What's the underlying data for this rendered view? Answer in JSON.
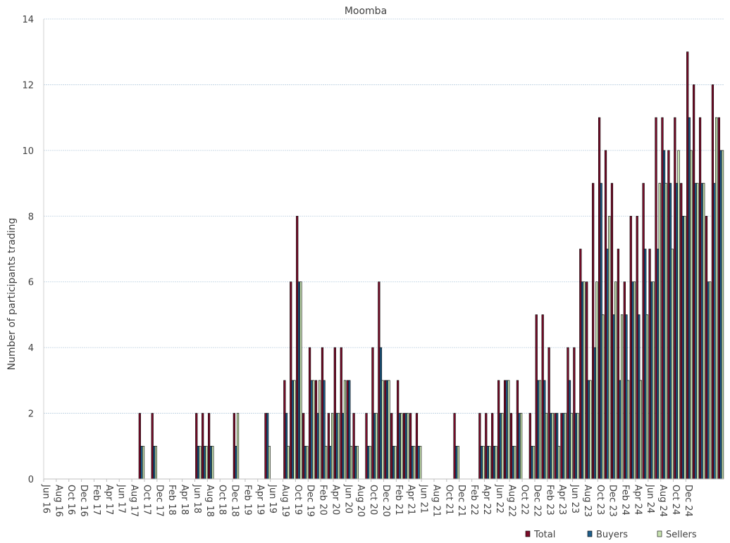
{
  "chart_data": {
    "type": "bar",
    "title": "Moomba",
    "ylabel": "Number of participants trading",
    "xlabel": "",
    "ylim": [
      0,
      14
    ],
    "yticks": [
      0,
      2,
      4,
      6,
      8,
      10,
      12,
      14
    ],
    "grid": true,
    "legend_position": "bottom-right",
    "start_month": "Jun 16",
    "tick_labels": [
      "Jun 16",
      "Aug 16",
      "Oct 16",
      "Dec 16",
      "Feb 17",
      "Apr 17",
      "Jun 17",
      "Aug 17",
      "Oct 17",
      "Dec 17",
      "Feb 18",
      "Apr 18",
      "Jun 18",
      "Aug 18",
      "Oct 18",
      "Dec 18",
      "Feb 19",
      "Apr 19",
      "Jun 19",
      "Aug 19",
      "Oct 19",
      "Dec 19",
      "Feb 20",
      "Apr 20",
      "Jun 20",
      "Aug 20",
      "Oct 20",
      "Dec 20",
      "Feb 21",
      "Apr 21",
      "Jun 21",
      "Aug 21",
      "Oct 21",
      "Dec 21",
      "Feb 22",
      "Apr 22",
      "Jun 22",
      "Aug 22",
      "Oct 22",
      "Dec 22",
      "Feb 23",
      "Apr 23",
      "Jun 23",
      "Aug 23",
      "Oct 23",
      "Dec 23",
      "Feb 24",
      "Apr 24",
      "Jun 24",
      "Aug 24",
      "Oct 24",
      "Dec 24"
    ],
    "series": [
      {
        "name": "Total",
        "color": "#7b0c2a",
        "values": [
          0,
          0,
          0,
          0,
          0,
          0,
          0,
          0,
          0,
          0,
          0,
          0,
          0,
          0,
          0,
          2,
          0,
          2,
          0,
          0,
          0,
          0,
          0,
          0,
          2,
          2,
          2,
          0,
          0,
          0,
          2,
          0,
          0,
          0,
          0,
          2,
          0,
          0,
          3,
          6,
          8,
          2,
          4,
          3,
          4,
          2,
          4,
          4,
          3,
          2,
          0,
          2,
          4,
          6,
          3,
          2,
          3,
          2,
          2,
          2,
          0,
          0,
          0,
          0,
          0,
          2,
          0,
          0,
          0,
          2,
          2,
          2,
          3,
          3,
          2,
          3,
          0,
          2,
          5,
          5,
          4,
          2,
          2,
          4,
          4,
          7,
          6,
          9,
          11,
          10,
          9,
          7,
          6,
          8,
          8,
          9,
          7,
          11,
          11,
          10,
          11,
          9,
          13,
          12,
          11,
          8,
          12,
          11
        ]
      },
      {
        "name": "Buyers",
        "color": "#1f5f8b",
        "values": [
          0,
          0,
          0,
          0,
          0,
          0,
          0,
          0,
          0,
          0,
          0,
          0,
          0,
          0,
          0,
          1,
          0,
          1,
          0,
          0,
          0,
          0,
          0,
          0,
          1,
          1,
          1,
          0,
          0,
          0,
          1,
          0,
          0,
          0,
          0,
          2,
          0,
          0,
          2,
          3,
          6,
          1,
          3,
          2,
          3,
          1,
          2,
          2,
          3,
          1,
          0,
          1,
          2,
          4,
          3,
          1,
          2,
          2,
          1,
          1,
          0,
          0,
          0,
          0,
          0,
          1,
          0,
          0,
          0,
          1,
          1,
          1,
          2,
          3,
          1,
          2,
          0,
          1,
          3,
          3,
          2,
          2,
          2,
          3,
          2,
          6,
          3,
          4,
          9,
          7,
          5,
          3,
          5,
          6,
          5,
          7,
          6,
          7,
          10,
          9,
          9,
          8,
          11,
          9,
          9,
          6,
          9,
          10
        ]
      },
      {
        "name": "Sellers",
        "color": "#c9e3b1",
        "values": [
          0,
          0,
          0,
          0,
          0,
          0,
          0,
          0,
          0,
          0,
          0,
          0,
          0,
          0,
          0,
          1,
          0,
          1,
          0,
          0,
          0,
          0,
          0,
          0,
          1,
          1,
          1,
          0,
          0,
          0,
          2,
          0,
          0,
          0,
          0,
          1,
          0,
          0,
          1,
          3,
          6,
          1,
          3,
          3,
          1,
          2,
          2,
          3,
          1,
          1,
          0,
          1,
          2,
          3,
          3,
          1,
          2,
          2,
          1,
          1,
          0,
          0,
          0,
          0,
          0,
          1,
          0,
          0,
          0,
          1,
          1,
          1,
          2,
          3,
          1,
          2,
          0,
          1,
          3,
          2,
          2,
          1,
          2,
          2,
          2,
          6,
          3,
          6,
          5,
          8,
          6,
          5,
          3,
          6,
          3,
          5,
          6,
          9,
          9,
          7,
          10,
          8,
          10,
          9,
          9,
          6,
          11,
          10
        ]
      }
    ]
  }
}
